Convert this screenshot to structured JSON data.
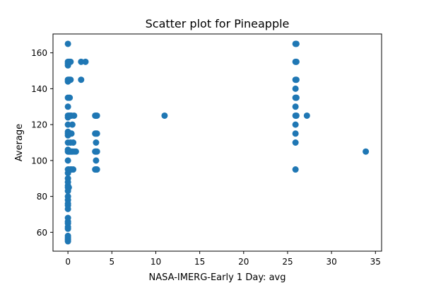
{
  "chart_data": {
    "type": "scatter",
    "title": "Scatter plot for Pineapple",
    "xlabel": "NASA-IMERG-Early 1 Day: avg",
    "ylabel": "Average",
    "xlim": [
      -1.7,
      35.7
    ],
    "ylim": [
      49.5,
      170.5
    ],
    "xticks": [
      0,
      5,
      10,
      15,
      20,
      25,
      30,
      35
    ],
    "yticks": [
      60,
      80,
      100,
      120,
      140,
      160
    ],
    "grid": false,
    "legend": "none",
    "marker_color": "#1f77b4",
    "points": [
      [
        0,
        165
      ],
      [
        0,
        155
      ],
      [
        0,
        154
      ],
      [
        0,
        153
      ],
      [
        0,
        145
      ],
      [
        0,
        144
      ],
      [
        0,
        135
      ],
      [
        0,
        130
      ],
      [
        0,
        125
      ],
      [
        0,
        124
      ],
      [
        0,
        120
      ],
      [
        0,
        116
      ],
      [
        0,
        115
      ],
      [
        0,
        114
      ],
      [
        0,
        110
      ],
      [
        0,
        106
      ],
      [
        0,
        105
      ],
      [
        0,
        100
      ],
      [
        0,
        95
      ],
      [
        0,
        93
      ],
      [
        0,
        90
      ],
      [
        0,
        88
      ],
      [
        0,
        86
      ],
      [
        0,
        85
      ],
      [
        0,
        83
      ],
      [
        0,
        80
      ],
      [
        0,
        78
      ],
      [
        0,
        76
      ],
      [
        0,
        75
      ],
      [
        0,
        73
      ],
      [
        0,
        68
      ],
      [
        0,
        66
      ],
      [
        0,
        65
      ],
      [
        0,
        63
      ],
      [
        0,
        62
      ],
      [
        0,
        58
      ],
      [
        0,
        57
      ],
      [
        0,
        56
      ],
      [
        0,
        55
      ],
      [
        0.1,
        155
      ],
      [
        0.1,
        145
      ],
      [
        0.1,
        125
      ],
      [
        0.1,
        115
      ],
      [
        0.1,
        105
      ],
      [
        0.1,
        95
      ],
      [
        0.1,
        85
      ],
      [
        0.2,
        155
      ],
      [
        0.2,
        145
      ],
      [
        0.2,
        135
      ],
      [
        0.2,
        125
      ],
      [
        0.2,
        115
      ],
      [
        0.2,
        105
      ],
      [
        0.3,
        155
      ],
      [
        0.3,
        145
      ],
      [
        0.3,
        125
      ],
      [
        0.3,
        115
      ],
      [
        0.3,
        110
      ],
      [
        0.3,
        105
      ],
      [
        0.3,
        95
      ],
      [
        0.4,
        125
      ],
      [
        0.4,
        115
      ],
      [
        0.4,
        105
      ],
      [
        0.4,
        95
      ],
      [
        0.5,
        105
      ],
      [
        0.5,
        120
      ],
      [
        0.6,
        110
      ],
      [
        0.6,
        95
      ],
      [
        0.7,
        125
      ],
      [
        0.7,
        105
      ],
      [
        0.9,
        105
      ],
      [
        1.5,
        155
      ],
      [
        1.5,
        145
      ],
      [
        2.0,
        155
      ],
      [
        3.1,
        125
      ],
      [
        3.1,
        115
      ],
      [
        3.1,
        105
      ],
      [
        3.1,
        95
      ],
      [
        3.2,
        125
      ],
      [
        3.2,
        115
      ],
      [
        3.2,
        110
      ],
      [
        3.2,
        105
      ],
      [
        3.2,
        100
      ],
      [
        3.2,
        95
      ],
      [
        3.3,
        125
      ],
      [
        3.3,
        115
      ],
      [
        3.3,
        105
      ],
      [
        3.3,
        95
      ],
      [
        11.0,
        125
      ],
      [
        25.9,
        165
      ],
      [
        25.9,
        155
      ],
      [
        25.9,
        145
      ],
      [
        25.9,
        140
      ],
      [
        25.9,
        135
      ],
      [
        25.9,
        130
      ],
      [
        25.9,
        125
      ],
      [
        25.9,
        120
      ],
      [
        25.9,
        115
      ],
      [
        25.9,
        110
      ],
      [
        25.9,
        95
      ],
      [
        26.0,
        165
      ],
      [
        26.0,
        155
      ],
      [
        26.0,
        145
      ],
      [
        26.0,
        135
      ],
      [
        26.0,
        125
      ],
      [
        27.2,
        125
      ],
      [
        33.9,
        105
      ]
    ]
  }
}
